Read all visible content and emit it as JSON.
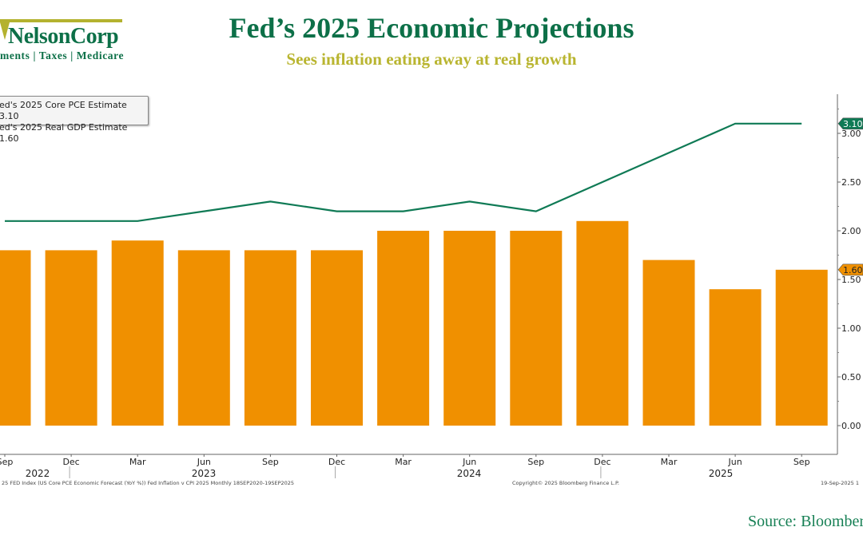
{
  "logo": {
    "name": "NelsonCorp",
    "tagline": "ments | Taxes | Medicare"
  },
  "header": {
    "title": "Fed’s 2025 Economic Projections",
    "subtitle": "Sees inflation eating away at real growth"
  },
  "legend": {
    "items": [
      "ed's 2025 Core PCE Estimate 3.10",
      "ed's 2025 Real GDP Estimate 1.60"
    ]
  },
  "footer": {
    "index_text": "25 FED Index (US Core PCE Economic Forecast (YoY %)) Fed Inflation v CPI 2025  Monthly 18SEP2020-19SEP2025",
    "copyright": "Copyright© 2025 Bloomberg Finance L.P.",
    "date": "19-Sep-2025 1",
    "source": "Source: Bloomber"
  },
  "colors": {
    "line": "#0f7a55",
    "bars": "#f09000",
    "title": "#0d7048",
    "subtitle": "#b9b530"
  },
  "chart_data": {
    "type": "bar+line",
    "categories": [
      "Sep",
      "Dec",
      "Mar",
      "Jun",
      "Sep",
      "Dec",
      "Mar",
      "Jun",
      "Sep",
      "Dec",
      "Mar",
      "Jun",
      "Sep"
    ],
    "years": [
      {
        "label": "2022",
        "after": 0
      },
      {
        "label": "2023",
        "at": 3
      },
      {
        "label": "2024",
        "at": 7
      },
      {
        "label": "2025",
        "at": 11
      }
    ],
    "series": [
      {
        "name": "Fed's 2025 Core PCE Estimate",
        "type": "line",
        "color": "#0f7a55",
        "values": [
          2.1,
          2.1,
          2.1,
          2.2,
          2.3,
          2.2,
          2.2,
          2.3,
          2.2,
          2.5,
          2.8,
          3.1,
          3.1
        ],
        "last_label": "3.10"
      },
      {
        "name": "Fed's 2025 Real GDP Estimate",
        "type": "bar",
        "color": "#f09000",
        "values": [
          1.8,
          1.8,
          1.9,
          1.8,
          1.8,
          1.8,
          2.0,
          2.0,
          2.0,
          2.1,
          1.7,
          1.4,
          1.6
        ],
        "last_label": "1.60"
      }
    ],
    "y_ticks": [
      "0.00",
      "0.50",
      "1.00",
      "1.50",
      "2.00",
      "2.50",
      "3.00"
    ],
    "ylim": [
      0,
      3.25
    ],
    "y_axis_side": "right",
    "grid": false
  }
}
